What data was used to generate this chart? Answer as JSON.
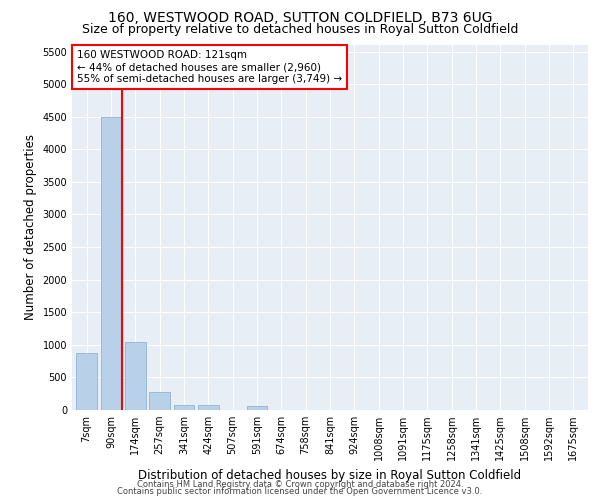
{
  "title": "160, WESTWOOD ROAD, SUTTON COLDFIELD, B73 6UG",
  "subtitle": "Size of property relative to detached houses in Royal Sutton Coldfield",
  "xlabel": "Distribution of detached houses by size in Royal Sutton Coldfield",
  "ylabel": "Number of detached properties",
  "categories": [
    "7sqm",
    "90sqm",
    "174sqm",
    "257sqm",
    "341sqm",
    "424sqm",
    "507sqm",
    "591sqm",
    "674sqm",
    "758sqm",
    "841sqm",
    "924sqm",
    "1008sqm",
    "1091sqm",
    "1175sqm",
    "1258sqm",
    "1341sqm",
    "1425sqm",
    "1508sqm",
    "1592sqm",
    "1675sqm"
  ],
  "values": [
    880,
    4500,
    1050,
    270,
    80,
    80,
    0,
    60,
    0,
    0,
    0,
    0,
    0,
    0,
    0,
    0,
    0,
    0,
    0,
    0,
    0
  ],
  "bar_color": "#b8d0e8",
  "bar_edge_color": "#90b4d4",
  "red_line_x": 1.44,
  "annotation_line1": "160 WESTWOOD ROAD: 121sqm",
  "annotation_line2": "← 44% of detached houses are smaller (2,960)",
  "annotation_line3": "55% of semi-detached houses are larger (3,749) →",
  "ylim": [
    0,
    5600
  ],
  "yticks": [
    0,
    500,
    1000,
    1500,
    2000,
    2500,
    3000,
    3500,
    4000,
    4500,
    5000,
    5500
  ],
  "background_color": "#e8eef6",
  "footer1": "Contains HM Land Registry data © Crown copyright and database right 2024.",
  "footer2": "Contains public sector information licensed under the Open Government Licence v3.0.",
  "title_fontsize": 10,
  "subtitle_fontsize": 9,
  "xlabel_fontsize": 8.5,
  "ylabel_fontsize": 8.5,
  "tick_fontsize": 7,
  "annotation_fontsize": 7.5,
  "footer_fontsize": 6
}
